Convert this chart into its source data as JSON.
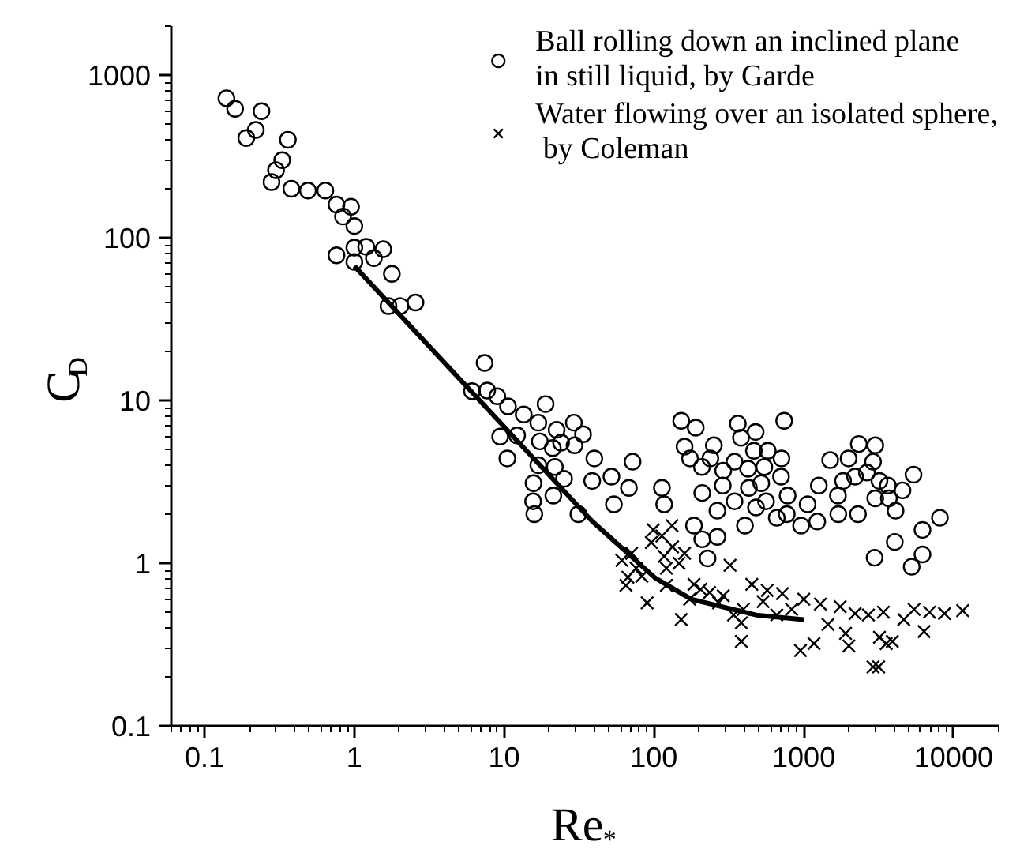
{
  "chart_data": {
    "type": "scatter",
    "xlabel": "Re$_{*}$",
    "ylabel": "C$_{D}$",
    "log": "xy",
    "xlim": [
      0.06,
      20000
    ],
    "ylim": [
      0.1,
      2000
    ],
    "xticks": [
      0.1,
      1,
      10,
      100,
      1000,
      10000
    ],
    "yticks": [
      0.1,
      1,
      10,
      100,
      1000
    ],
    "grid": false,
    "legend": "top right",
    "series": [
      {
        "name": "Ball rolling down an inclined plane\nin still liquid, by Garde",
        "color": "#000000",
        "marker": "circle",
        "x": [
          0.14,
          0.16,
          0.19,
          0.22,
          0.24,
          0.28,
          0.3,
          0.33,
          0.36,
          0.38,
          0.49,
          0.64,
          0.76,
          0.84,
          0.95,
          1.0,
          0.76,
          1.0,
          1.0,
          1.2,
          1.35,
          1.56,
          1.78,
          1.69,
          2.03,
          2.56,
          6.1,
          7.4,
          7.7,
          9.0,
          10.6,
          9.4,
          10.5,
          12.2,
          13.5,
          16.9,
          18.9,
          17.3,
          16.9,
          15.7,
          15.6,
          15.9,
          22.4,
          21.1,
          21.8,
          21.3,
          25.1,
          24,
          29.2,
          29.5,
          33.6,
          31.3,
          40,
          38.7,
          52,
          54,
          68,
          72,
          113,
          117,
          185,
          210,
          228,
          265,
          152,
          190,
          160,
          174,
          209,
          210,
          238,
          251,
          265,
          290,
          345,
          288,
          345,
          363,
          381,
          425,
          430,
          405,
          465,
          477,
          480,
          520,
          545,
          575,
          560,
          660,
          705,
          710,
          740,
          770,
          780,
          960,
          1060,
          1230,
          1260,
          1500,
          1690,
          1700,
          1830,
          1990,
          2200,
          2300,
          2330,
          2640,
          2900,
          3000,
          3000,
          2970,
          3200,
          3640,
          3700,
          4050,
          4100,
          4560,
          5400,
          5250,
          6200,
          6200,
          8100
        ],
        "values": [
          720,
          620,
          410,
          460,
          600,
          220,
          260,
          300,
          400,
          200,
          195,
          195,
          160,
          135,
          155,
          118,
          78,
          87,
          71,
          88,
          75,
          85,
          60,
          38,
          38,
          40,
          11.4,
          17,
          11.5,
          10.6,
          9.2,
          6.0,
          4.4,
          6.1,
          8.2,
          7.3,
          9.5,
          5.6,
          4.0,
          3.1,
          2.4,
          2.0,
          6.6,
          5.1,
          3.9,
          2.6,
          3.3,
          5.5,
          7.3,
          5.3,
          6.2,
          2.0,
          4.4,
          3.2,
          3.4,
          2.3,
          2.9,
          4.2,
          2.9,
          2.3,
          1.7,
          1.4,
          1.07,
          1.45,
          7.5,
          6.8,
          5.2,
          4.4,
          3.9,
          2.7,
          4.4,
          5.3,
          2.1,
          3.7,
          4.2,
          3.0,
          2.4,
          7.2,
          5.9,
          3.8,
          2.9,
          1.7,
          4.9,
          6.4,
          2.2,
          3.1,
          3.9,
          4.9,
          2.4,
          1.9,
          3.4,
          4.4,
          7.5,
          2.0,
          2.6,
          1.7,
          2.3,
          1.8,
          3.0,
          4.3,
          2.6,
          2.0,
          3.2,
          4.4,
          3.4,
          2.0,
          5.4,
          3.6,
          4.2,
          5.3,
          2.5,
          1.08,
          3.2,
          3.0,
          2.5,
          1.35,
          2.1,
          2.8,
          3.5,
          0.95,
          1.13,
          1.6,
          1.9
        ]
      },
      {
        "name": "Water flowing over an isolated sphere,\n by Coleman",
        "color": "#000000",
        "marker": "cross",
        "x": [
          61,
          67,
          65,
          71,
          76,
          83,
          90,
          96,
          99,
          113,
          117,
          121,
          121,
          132,
          133,
          147,
          160,
          152,
          173,
          185,
          205,
          235,
          270,
          290,
          322,
          340,
          383,
          383,
          395,
          450,
          535,
          570,
          660,
          720,
          830,
          950,
          1000,
          1170,
          1290,
          1450,
          1750,
          1900,
          2000,
          2200,
          2700,
          2900,
          3160,
          3200,
          3400,
          3550,
          3900,
          4650,
          5450,
          6350,
          6900,
          8700,
          11500
        ],
        "values": [
          1.04,
          0.82,
          0.73,
          1.15,
          0.93,
          0.83,
          0.57,
          1.34,
          1.6,
          1.47,
          1.1,
          0.93,
          0.73,
          1.7,
          1.26,
          1.0,
          1.15,
          0.45,
          0.6,
          0.74,
          0.69,
          0.66,
          0.57,
          0.63,
          0.97,
          0.48,
          0.43,
          0.33,
          0.52,
          0.74,
          0.58,
          0.68,
          0.48,
          0.65,
          0.52,
          0.29,
          0.6,
          0.32,
          0.56,
          0.42,
          0.54,
          0.37,
          0.31,
          0.49,
          0.48,
          0.23,
          0.23,
          0.35,
          0.5,
          0.32,
          0.33,
          0.45,
          0.52,
          0.38,
          0.5,
          0.49,
          0.51
        ]
      },
      {
        "type": "line",
        "color": "#000000",
        "line_style": "solid",
        "marker": "none",
        "x": [
          1,
          38.7,
          102,
          177,
          480,
          1000
        ],
        "values": [
          67,
          1.81,
          0.81,
          0.6,
          0.48,
          0.45
        ]
      }
    ]
  }
}
